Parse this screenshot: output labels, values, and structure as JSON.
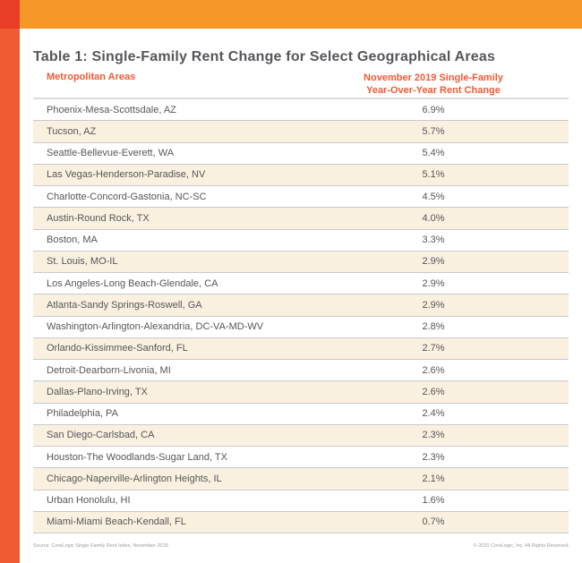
{
  "chart_data": {
    "type": "table",
    "title": "Table 1: Single-Family Rent Change for Select Geographical Areas",
    "columns": [
      "Metropolitan Areas",
      "November 2019 Single-Family Year-Over-Year Rent Change"
    ],
    "rows": [
      {
        "metro_area": "Phoenix-Mesa-Scottsdale, AZ",
        "rent_change": "6.9%"
      },
      {
        "metro_area": "Tucson, AZ",
        "rent_change": "5.7%"
      },
      {
        "metro_area": "Seattle-Bellevue-Everett, WA",
        "rent_change": "5.4%"
      },
      {
        "metro_area": "Las Vegas-Henderson-Paradise, NV",
        "rent_change": "5.1%"
      },
      {
        "metro_area": "Charlotte-Concord-Gastonia, NC-SC",
        "rent_change": "4.5%"
      },
      {
        "metro_area": "Austin-Round Rock, TX",
        "rent_change": "4.0%"
      },
      {
        "metro_area": "Boston, MA",
        "rent_change": "3.3%"
      },
      {
        "metro_area": "St. Louis, MO-IL",
        "rent_change": "2.9%"
      },
      {
        "metro_area": "Los Angeles-Long Beach-Glendale, CA",
        "rent_change": "2.9%"
      },
      {
        "metro_area": "Atlanta-Sandy Springs-Roswell, GA",
        "rent_change": "2.9%"
      },
      {
        "metro_area": "Washington-Arlington-Alexandria, DC-VA-MD-WV",
        "rent_change": "2.8%"
      },
      {
        "metro_area": "Orlando-Kissimmee-Sanford, FL",
        "rent_change": "2.7%"
      },
      {
        "metro_area": "Detroit-Dearborn-Livonia, MI",
        "rent_change": "2.6%"
      },
      {
        "metro_area": "Dallas-Plano-Irving, TX",
        "rent_change": "2.6%"
      },
      {
        "metro_area": "Philadelphia, PA",
        "rent_change": "2.4%"
      },
      {
        "metro_area": "San Diego-Carlsbad, CA",
        "rent_change": "2.3%"
      },
      {
        "metro_area": "Houston-The Woodlands-Sugar Land, TX",
        "rent_change": "2.3%"
      },
      {
        "metro_area": "Chicago-Naperville-Arlington Heights, IL",
        "rent_change": "2.1%"
      },
      {
        "metro_area": "Urban Honolulu, HI",
        "rent_change": "1.6%"
      },
      {
        "metro_area": "Miami-Miami Beach-Kendall, FL",
        "rent_change": "0.7%"
      }
    ]
  },
  "header": {
    "col1": "Metropolitan Areas",
    "col2_line1": "November 2019 Single-Family",
    "col2_line2": "Year-Over-Year Rent Change"
  },
  "footer": {
    "source": "Source: CoreLogic Single-Family Rent Index, November 2019",
    "copyright": "© 2020 CoreLogic, Inc. All Rights Reserved."
  },
  "colors": {
    "banner-orange": "#F79728",
    "corner-red": "#E83E27",
    "strip-orange-red": "#F15B31",
    "row-cream": "#FAF0DF",
    "header-accent": "#F15A33",
    "text-dark": "#54565A",
    "divider-gray": "#C9C9C9",
    "footer-gray": "#9A9CA0"
  }
}
